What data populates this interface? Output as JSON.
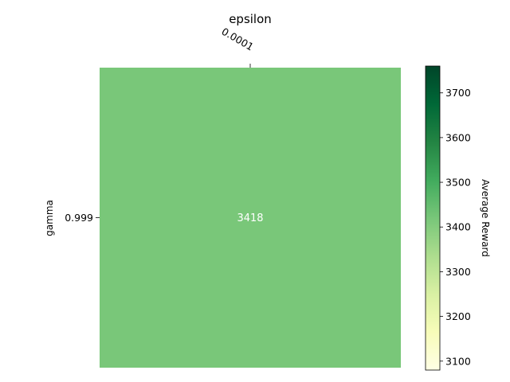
{
  "chart_data": {
    "type": "heatmap",
    "x_label": "epsilon",
    "y_label": "gamma",
    "x_categories": [
      "0.0001"
    ],
    "y_categories": [
      "0.999"
    ],
    "values": [
      [
        3418
      ]
    ],
    "cell_labels": [
      [
        "3418"
      ]
    ],
    "colorbar": {
      "label": "Average Reward",
      "range": [
        3080,
        3760
      ],
      "ticks": [
        3100,
        3200,
        3300,
        3400,
        3500,
        3600,
        3700
      ],
      "tick_labels": [
        "3100",
        "3200",
        "3300",
        "3400",
        "3500",
        "3600",
        "3700"
      ],
      "colormap": "YlGn",
      "colormap_stops": [
        "#ffffe5",
        "#f7fcb9",
        "#d9f0a3",
        "#addd8e",
        "#78c679",
        "#41ab5d",
        "#238443",
        "#006837",
        "#004529"
      ]
    },
    "x_axis_position": "top",
    "grid": false
  }
}
